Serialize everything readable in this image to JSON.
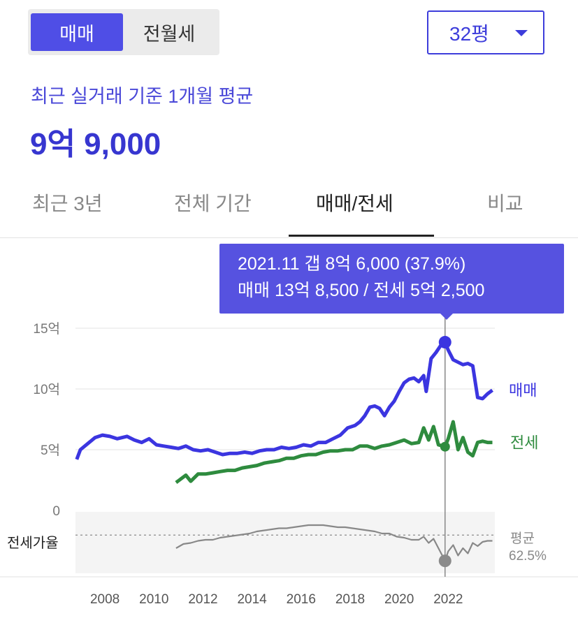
{
  "toggle": {
    "sale_label": "매매",
    "jeonse_label": "전월세"
  },
  "area_select": {
    "value": "32평"
  },
  "summary": {
    "caption": "최근 실거래 기준 1개월 평균",
    "price": "9억 9,000"
  },
  "tabs": [
    {
      "label": "최근 3년"
    },
    {
      "label": "전체 기간"
    },
    {
      "label": "매매/전세",
      "active": true
    },
    {
      "label": "비교"
    }
  ],
  "tooltip": {
    "line1": "2021.11  갭 8억 6,000 (37.9%)",
    "line2": "매매 13억 8,500 / 전세 5억 2,500"
  },
  "colors": {
    "sale": "#3b35e0",
    "jeonse": "#2e8b3e",
    "ratio": "#888888",
    "accent": "#4f4ee6"
  },
  "chart_data": {
    "type": "line",
    "y_ticks": [
      "15억",
      "10억",
      "5억",
      "0"
    ],
    "ylim": [
      0,
      15
    ],
    "x_ticks": [
      "2008",
      "2010",
      "2012",
      "2014",
      "2016",
      "2018",
      "2020",
      "2022"
    ],
    "xlim": [
      2006.8,
      2023.9
    ],
    "highlight_x": 2021.87,
    "series": [
      {
        "name": "매매",
        "color": "#3b35e0",
        "x": [
          2006.85,
          2007.0,
          2007.3,
          2007.6,
          2007.9,
          2008.2,
          2008.5,
          2008.9,
          2009.2,
          2009.5,
          2009.8,
          2010.1,
          2010.4,
          2010.7,
          2011.0,
          2011.3,
          2011.6,
          2011.9,
          2012.2,
          2012.5,
          2012.8,
          2013.1,
          2013.4,
          2013.7,
          2014.0,
          2014.3,
          2014.6,
          2014.9,
          2015.2,
          2015.5,
          2015.8,
          2016.1,
          2016.4,
          2016.7,
          2017.0,
          2017.3,
          2017.6,
          2017.9,
          2018.2,
          2018.4,
          2018.6,
          2018.8,
          2019.0,
          2019.2,
          2019.4,
          2019.6,
          2019.8,
          2020.0,
          2020.2,
          2020.4,
          2020.6,
          2020.8,
          2021.0,
          2021.1,
          2021.3,
          2021.5,
          2021.7,
          2021.87,
          2022.0,
          2022.2,
          2022.4,
          2022.6,
          2022.8,
          2023.0,
          2023.2,
          2023.4,
          2023.6,
          2023.8
        ],
        "values": [
          4.2,
          5.0,
          5.5,
          6.0,
          6.2,
          6.1,
          5.9,
          6.1,
          5.8,
          5.6,
          5.9,
          5.4,
          5.3,
          5.2,
          5.1,
          5.3,
          5.0,
          4.9,
          5.0,
          4.8,
          4.6,
          4.7,
          4.7,
          4.8,
          4.7,
          4.9,
          5.0,
          5.0,
          5.2,
          5.1,
          5.2,
          5.4,
          5.3,
          5.6,
          5.6,
          5.9,
          6.2,
          6.8,
          7.0,
          7.3,
          7.8,
          8.5,
          8.6,
          8.4,
          7.8,
          8.5,
          9.0,
          9.8,
          10.5,
          10.8,
          10.9,
          10.6,
          11.1,
          9.8,
          12.5,
          13.0,
          13.6,
          13.85,
          13.2,
          12.4,
          12.2,
          12.0,
          12.1,
          11.9,
          9.3,
          9.2,
          9.6,
          9.9
        ]
      },
      {
        "name": "전세",
        "color": "#2e8b3e",
        "x": [
          2010.9,
          2011.1,
          2011.3,
          2011.5,
          2011.8,
          2012.1,
          2012.4,
          2012.7,
          2013.0,
          2013.3,
          2013.6,
          2013.9,
          2014.2,
          2014.5,
          2014.8,
          2015.1,
          2015.4,
          2015.7,
          2016.0,
          2016.3,
          2016.6,
          2016.9,
          2017.2,
          2017.5,
          2017.8,
          2018.1,
          2018.4,
          2018.7,
          2019.0,
          2019.3,
          2019.6,
          2019.9,
          2020.2,
          2020.5,
          2020.8,
          2021.0,
          2021.2,
          2021.4,
          2021.6,
          2021.87,
          2022.0,
          2022.2,
          2022.4,
          2022.6,
          2022.8,
          2023.0,
          2023.2,
          2023.4,
          2023.6,
          2023.8
        ],
        "values": [
          2.3,
          2.6,
          2.9,
          2.4,
          3.0,
          3.0,
          3.1,
          3.2,
          3.3,
          3.3,
          3.5,
          3.6,
          3.7,
          3.9,
          4.0,
          4.1,
          4.3,
          4.3,
          4.5,
          4.6,
          4.6,
          4.8,
          4.9,
          4.9,
          5.0,
          5.0,
          5.3,
          5.3,
          5.1,
          5.3,
          5.4,
          5.6,
          5.8,
          5.5,
          5.6,
          6.8,
          5.8,
          6.9,
          5.4,
          5.25,
          5.9,
          7.3,
          5.0,
          6.0,
          4.8,
          4.5,
          5.6,
          5.7,
          5.6,
          5.6
        ]
      },
      {
        "name": "전세가율",
        "color": "#888888",
        "x": [
          2010.9,
          2011.2,
          2011.5,
          2011.8,
          2012.1,
          2012.4,
          2012.7,
          2013.0,
          2013.3,
          2013.6,
          2013.9,
          2014.2,
          2014.5,
          2014.8,
          2015.1,
          2015.4,
          2015.7,
          2016.0,
          2016.3,
          2016.6,
          2016.9,
          2017.2,
          2017.5,
          2017.8,
          2018.1,
          2018.4,
          2018.7,
          2019.0,
          2019.3,
          2019.6,
          2019.9,
          2020.2,
          2020.5,
          2020.8,
          2021.0,
          2021.2,
          2021.4,
          2021.6,
          2021.87,
          2022.0,
          2022.2,
          2022.4,
          2022.6,
          2022.8,
          2023.0,
          2023.2,
          2023.4,
          2023.6,
          2023.8
        ],
        "values": [
          50,
          54,
          55,
          57,
          58,
          58,
          60,
          61,
          62,
          63,
          64,
          66,
          67,
          68,
          69,
          69,
          70,
          71,
          72,
          72,
          72,
          71,
          70,
          70,
          69,
          68,
          67,
          66,
          64,
          64,
          61,
          60,
          58,
          58,
          61,
          55,
          59,
          50,
          37.9,
          47,
          53,
          43,
          50,
          45,
          55,
          52,
          56,
          57,
          57
        ]
      }
    ],
    "ratio_label": "전세가율",
    "ratio_avg_label": "평균",
    "ratio_avg_value": "62.5%",
    "ratio_avg": 62.5,
    "ratio_range": [
      30,
      80
    ]
  }
}
